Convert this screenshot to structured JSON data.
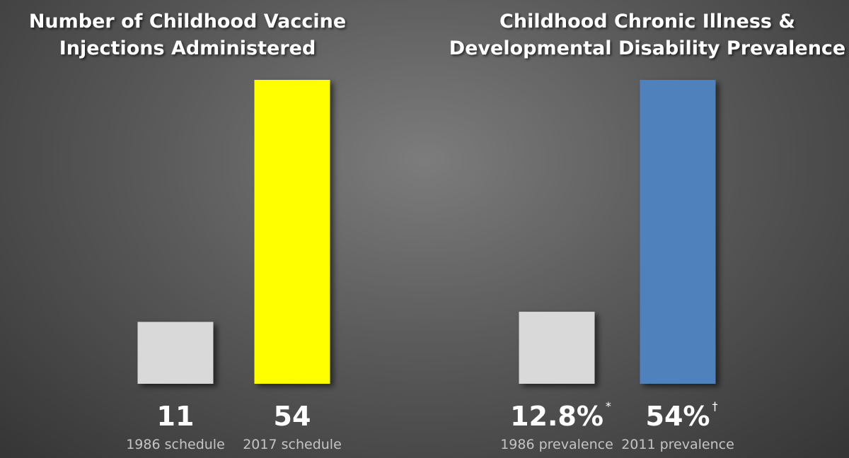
{
  "chart_data": [
    {
      "type": "bar",
      "title": "Number of Childhood Vaccine\nInjections Administered",
      "categories": [
        "1986 schedule",
        "2017 schedule"
      ],
      "values": [
        11,
        54
      ],
      "colors": [
        "#d9d9d9",
        "#ffff00"
      ]
    },
    {
      "type": "bar",
      "title": "Childhood Chronic Illness &\nDevelopmental Disability Prevalence",
      "categories": [
        "1986 prevalence",
        "2011 prevalence"
      ],
      "values": [
        12.8,
        54
      ],
      "value_labels": [
        "12.8%",
        "54%"
      ],
      "value_label_marks": [
        "*",
        "†"
      ],
      "colors": [
        "#d9d9d9",
        "#4f81bd"
      ]
    }
  ]
}
